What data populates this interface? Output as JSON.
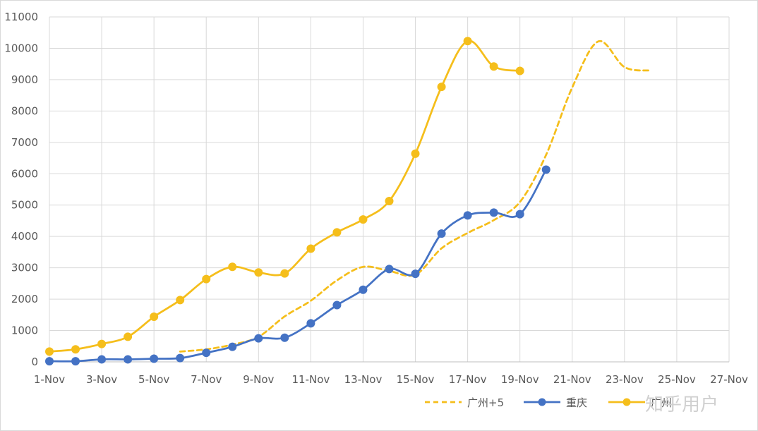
{
  "chart_data": {
    "type": "line",
    "title": "",
    "xlabel": "",
    "ylabel": "",
    "x_start": "1-Nov",
    "x_tick_labels": [
      "1-Nov",
      "3-Nov",
      "5-Nov",
      "7-Nov",
      "9-Nov",
      "11-Nov",
      "13-Nov",
      "15-Nov",
      "17-Nov",
      "19-Nov",
      "21-Nov",
      "23-Nov",
      "25-Nov",
      "27-Nov"
    ],
    "xlim": [
      "1-Nov",
      "27-Nov"
    ],
    "ylim": [
      0,
      11000
    ],
    "y_ticks": [
      0,
      1000,
      2000,
      3000,
      4000,
      5000,
      6000,
      7000,
      8000,
      9000,
      10000,
      11000
    ],
    "grid": true,
    "legend_position": "bottom-right",
    "series": [
      {
        "name": "广州+5",
        "color": "#F5BE1B",
        "style": "dashed",
        "markers": false,
        "points": [
          [
            "6-Nov",
            330
          ],
          [
            "7-Nov",
            400
          ],
          [
            "8-Nov",
            550
          ],
          [
            "9-Nov",
            800
          ],
          [
            "10-Nov",
            1450
          ],
          [
            "11-Nov",
            1950
          ],
          [
            "12-Nov",
            2600
          ],
          [
            "13-Nov",
            3030
          ],
          [
            "14-Nov",
            2900
          ],
          [
            "15-Nov",
            2780
          ],
          [
            "16-Nov",
            3620
          ],
          [
            "17-Nov",
            4110
          ],
          [
            "18-Nov",
            4520
          ],
          [
            "19-Nov",
            5100
          ],
          [
            "20-Nov",
            6600
          ],
          [
            "21-Nov",
            8750
          ],
          [
            "22-Nov",
            10220
          ],
          [
            "23-Nov",
            9400
          ],
          [
            "24-Nov",
            9290
          ]
        ]
      },
      {
        "name": "重庆",
        "color": "#4472C4",
        "style": "solid",
        "markers": true,
        "points": [
          [
            "1-Nov",
            20
          ],
          [
            "2-Nov",
            20
          ],
          [
            "3-Nov",
            80
          ],
          [
            "4-Nov",
            80
          ],
          [
            "5-Nov",
            100
          ],
          [
            "6-Nov",
            120
          ],
          [
            "7-Nov",
            290
          ],
          [
            "8-Nov",
            480
          ],
          [
            "9-Nov",
            750
          ],
          [
            "10-Nov",
            770
          ],
          [
            "11-Nov",
            1230
          ],
          [
            "12-Nov",
            1810
          ],
          [
            "13-Nov",
            2300
          ],
          [
            "14-Nov",
            2960
          ],
          [
            "15-Nov",
            2810
          ],
          [
            "16-Nov",
            4090
          ],
          [
            "17-Nov",
            4670
          ],
          [
            "18-Nov",
            4760
          ],
          [
            "19-Nov",
            4710
          ],
          [
            "20-Nov",
            6130
          ]
        ]
      },
      {
        "name": "广州",
        "color": "#F5BE1B",
        "style": "solid",
        "markers": true,
        "points": [
          [
            "1-Nov",
            330
          ],
          [
            "2-Nov",
            400
          ],
          [
            "3-Nov",
            570
          ],
          [
            "4-Nov",
            800
          ],
          [
            "5-Nov",
            1440
          ],
          [
            "6-Nov",
            1970
          ],
          [
            "7-Nov",
            2640
          ],
          [
            "8-Nov",
            3030
          ],
          [
            "9-Nov",
            2850
          ],
          [
            "10-Nov",
            2820
          ],
          [
            "11-Nov",
            3610
          ],
          [
            "12-Nov",
            4130
          ],
          [
            "13-Nov",
            4540
          ],
          [
            "14-Nov",
            5130
          ],
          [
            "15-Nov",
            6640
          ],
          [
            "16-Nov",
            8770
          ],
          [
            "17-Nov",
            10230
          ],
          [
            "18-Nov",
            9420
          ],
          [
            "19-Nov",
            9280
          ]
        ]
      }
    ]
  },
  "watermark_text": "知乎用户"
}
